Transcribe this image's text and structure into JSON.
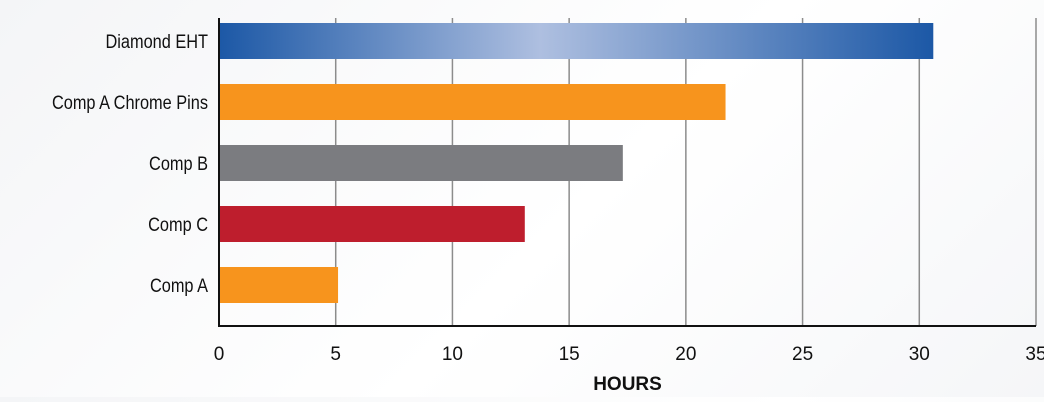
{
  "chart_data": {
    "type": "bar",
    "orientation": "horizontal",
    "title": "",
    "xlabel": "HOURS",
    "ylabel": "",
    "categories": [
      "Diamond EHT",
      "Comp A Chrome Pins",
      "Comp B",
      "Comp C",
      "Comp A"
    ],
    "values": [
      30.6,
      21.7,
      17.3,
      13.1,
      5.1
    ],
    "bar_colors": [
      "#2c64ad",
      "#f7941d",
      "#7b7c80",
      "#be1e2d",
      "#f7941d"
    ],
    "xlim": [
      0,
      35
    ],
    "xticks": [
      "0",
      "5",
      "10",
      "15",
      "20",
      "25",
      "30",
      "35"
    ],
    "grid": true,
    "legend": "none"
  }
}
